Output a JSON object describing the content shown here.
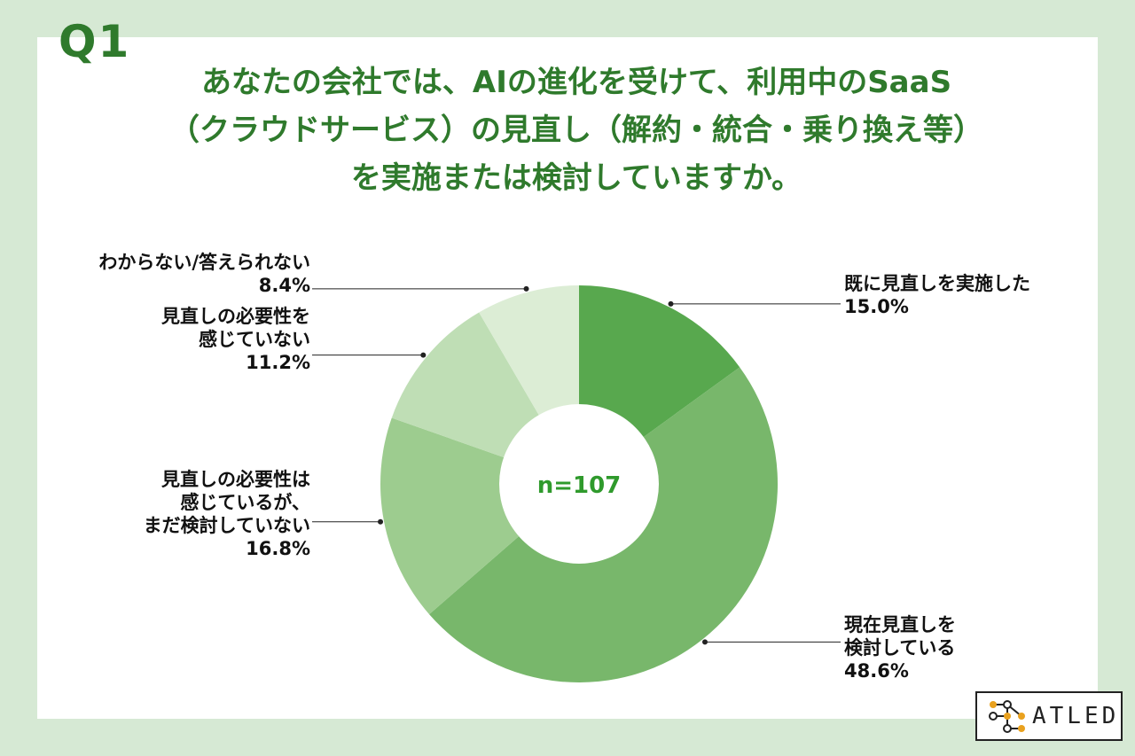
{
  "question_number": "Q1",
  "question_text": "あなたの会社では、AIの進化を受けて、利用中のSaaS\n（クラウドサービス）の見直し（解約・統合・乗り換え等）\nを実施または検討していますか。",
  "logo_text": "ATLED",
  "colors": {
    "background": "#d6e9d4",
    "title": "#2f7a2c",
    "center_label": "#2f9a2c"
  },
  "chart_data": {
    "type": "pie",
    "variant": "donut",
    "center_label": "n=107",
    "slices": [
      {
        "label": "既に見直しを実施した",
        "label_lines": [
          "既に見直しを実施した"
        ],
        "value": 15.0,
        "value_text": "15.0%",
        "color": "#58a84e"
      },
      {
        "label": "現在見直しを検討している",
        "label_lines": [
          "現在見直しを",
          "検討している"
        ],
        "value": 48.6,
        "value_text": "48.6%",
        "color": "#78b76b"
      },
      {
        "label": "見直しの必要性は感じているが、まだ検討していない",
        "label_lines": [
          "見直しの必要性は",
          "感じているが、",
          "まだ検討していない"
        ],
        "value": 16.8,
        "value_text": "16.8%",
        "color": "#9dcc8f"
      },
      {
        "label": "見直しの必要性を感じていない",
        "label_lines": [
          "見直しの必要性を",
          "感じていない"
        ],
        "value": 11.2,
        "value_text": "11.2%",
        "color": "#bfdeb5"
      },
      {
        "label": "わからない/答えられない",
        "label_lines": [
          "わからない/答えられない"
        ],
        "value": 8.4,
        "value_text": "8.4%",
        "color": "#dcedd5"
      }
    ],
    "legend": "none"
  }
}
